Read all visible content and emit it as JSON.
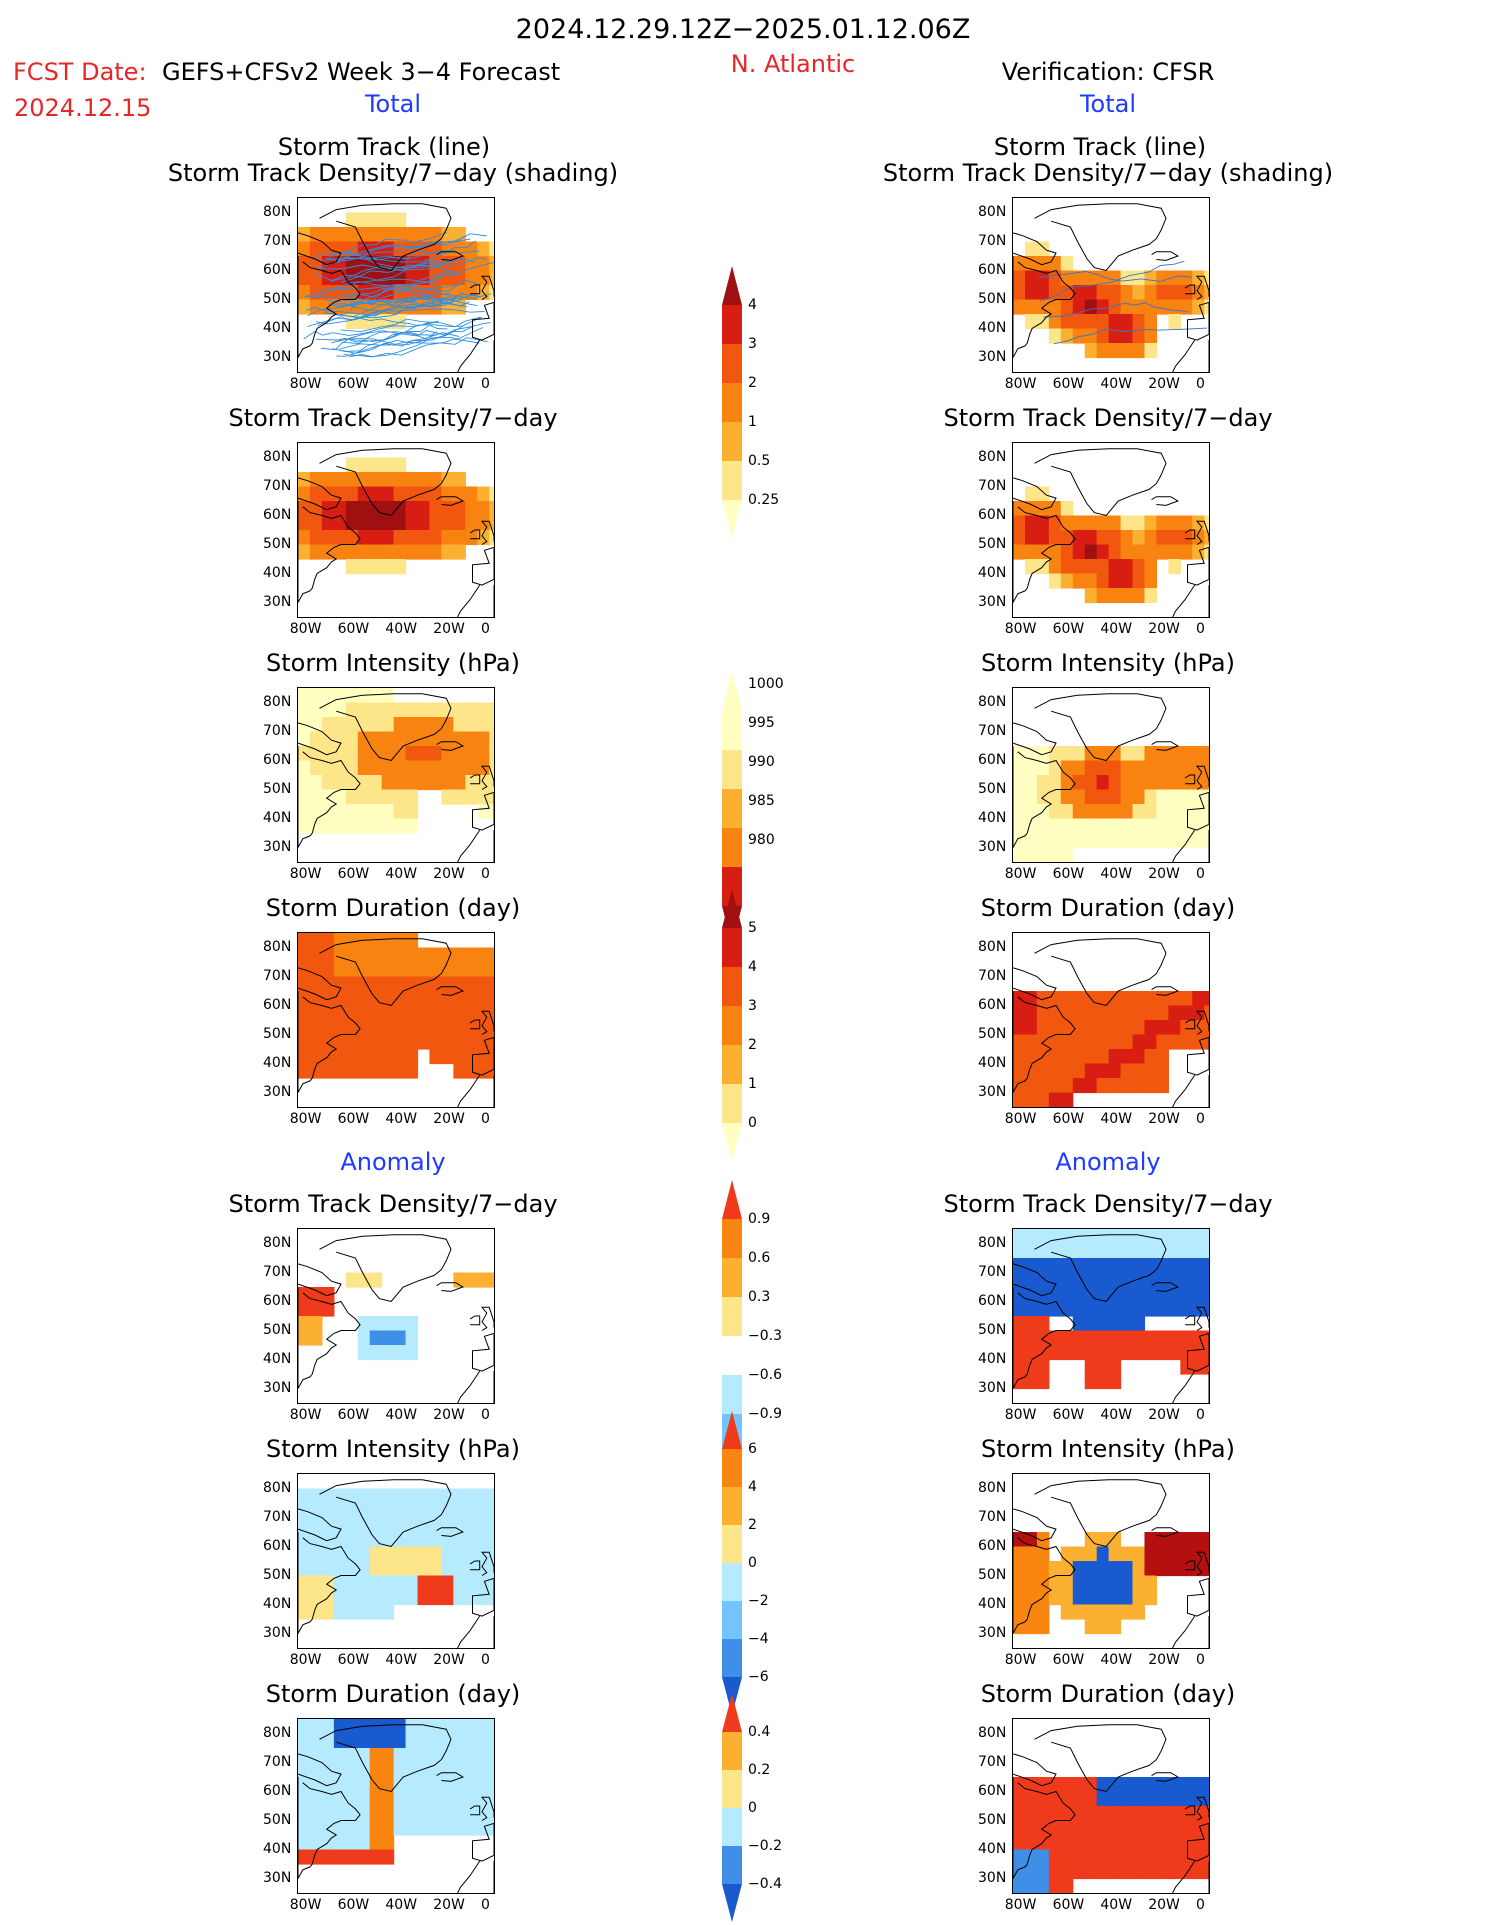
{
  "header": {
    "period": "2024.12.29.12Z−2025.01.12.06Z",
    "fcst_label": "FCST Date:",
    "model": "GEFS+CFSv2 Week 3−4 Forecast",
    "fcst_date": "2024.12.15",
    "region": "N. Atlantic",
    "verification": "Verification: CFSR"
  },
  "sections": {
    "total": "Total",
    "anomaly": "Anomaly"
  },
  "panel_titles": {
    "track_line": "Storm Track (line)",
    "track_shading": "Storm Track Density/7−day (shading)",
    "density": "Storm Track Density/7−day",
    "intensity": "Storm Intensity (hPa)",
    "duration": "Storm Duration (day)"
  },
  "axes": {
    "lat_ticks": [
      "80N",
      "70N",
      "60N",
      "50N",
      "40N",
      "30N"
    ],
    "lon_ticks": [
      "80W",
      "60W",
      "40W",
      "20W",
      "0"
    ]
  },
  "colors": {
    "anom_pos": [
      "#fde68a",
      "#fcb031",
      "#f7850f",
      "#ef3b1c"
    ],
    "anom_neg": [
      "#b6ebff",
      "#74c4ff",
      "#3f8fe8",
      "#1a5ad0"
    ],
    "total_scale": [
      "#ffffc2",
      "#fde68a",
      "#fcb031",
      "#f98311",
      "#f2570f",
      "#d81e12",
      "#a01010"
    ]
  },
  "chart_data": [
    {
      "type": "heatmap",
      "panel": "forecast-total-track-density-shading-with-track-lines",
      "colorbar": [
        "0.25",
        "0.5",
        "1",
        "2",
        "3",
        "4"
      ],
      "xlim": [
        -80,
        0
      ],
      "ylim": [
        25,
        85
      ],
      "pattern": "broad maximum from Labrador Sea to Iceland (~55-65N), many blue ensemble track lines across 30-75N"
    },
    {
      "type": "heatmap",
      "panel": "verification-total-track-density-shading-with-track-line",
      "colorbar": [
        "0.25",
        "0.5",
        "1",
        "2",
        "3",
        "4"
      ],
      "xlim": [
        -80,
        0
      ],
      "ylim": [
        25,
        85
      ],
      "pattern": "maxima near 75W 55N, 50W 48N and 40W 40N extending to 10W 50N"
    },
    {
      "type": "heatmap",
      "panel": "forecast-total-density",
      "colorbar": [
        "0.25",
        "0.5",
        "1",
        "2",
        "3",
        "4"
      ]
    },
    {
      "type": "heatmap",
      "panel": "verification-total-density",
      "colorbar": [
        "0.25",
        "0.5",
        "1",
        "2",
        "3",
        "4"
      ]
    },
    {
      "type": "heatmap",
      "panel": "forecast-total-intensity",
      "colorbar": [
        "1000",
        "995",
        "990",
        "985",
        "980"
      ]
    },
    {
      "type": "heatmap",
      "panel": "verification-total-intensity",
      "colorbar": [
        "1000",
        "995",
        "990",
        "985",
        "980"
      ]
    },
    {
      "type": "heatmap",
      "panel": "forecast-total-duration",
      "colorbar": [
        "0",
        "1",
        "2",
        "3",
        "4",
        "5"
      ]
    },
    {
      "type": "heatmap",
      "panel": "verification-total-duration",
      "colorbar": [
        "0",
        "1",
        "2",
        "3",
        "4",
        "5"
      ]
    },
    {
      "type": "heatmap",
      "panel": "forecast-anomaly-density",
      "colorbar": [
        "0.9",
        "0.6",
        "0.3",
        "−0.3",
        "−0.6",
        "−0.9"
      ]
    },
    {
      "type": "heatmap",
      "panel": "verification-anomaly-density",
      "colorbar": [
        "0.9",
        "0.6",
        "0.3",
        "−0.3",
        "−0.6",
        "−0.9"
      ]
    },
    {
      "type": "heatmap",
      "panel": "forecast-anomaly-intensity",
      "colorbar": [
        "6",
        "4",
        "2",
        "0",
        "−2",
        "−4",
        "−6"
      ]
    },
    {
      "type": "heatmap",
      "panel": "verification-anomaly-intensity",
      "colorbar": [
        "6",
        "4",
        "2",
        "0",
        "−2",
        "−4",
        "−6"
      ]
    },
    {
      "type": "heatmap",
      "panel": "forecast-anomaly-duration",
      "colorbar": [
        "0.4",
        "0.2",
        "0",
        "−0.2",
        "−0.4"
      ]
    },
    {
      "type": "heatmap",
      "panel": "verification-anomaly-duration",
      "colorbar": [
        "0.4",
        "0.2",
        "0",
        "−0.2",
        "−0.4"
      ]
    }
  ],
  "colorbars": {
    "density": [
      "4",
      "3",
      "2",
      "1",
      "0.5",
      "0.25"
    ],
    "intensity": [
      "1000",
      "995",
      "990",
      "985",
      "980"
    ],
    "duration": [
      "5",
      "4",
      "3",
      "2",
      "1",
      "0"
    ],
    "anom_density": [
      "0.9",
      "0.6",
      "0.3",
      "−0.3",
      "−0.6",
      "−0.9"
    ],
    "anom_intensity": [
      "6",
      "4",
      "2",
      "0",
      "−2",
      "−4",
      "−6"
    ],
    "anom_duration": [
      "0.4",
      "0.2",
      "0",
      "−0.2",
      "−0.4"
    ]
  }
}
